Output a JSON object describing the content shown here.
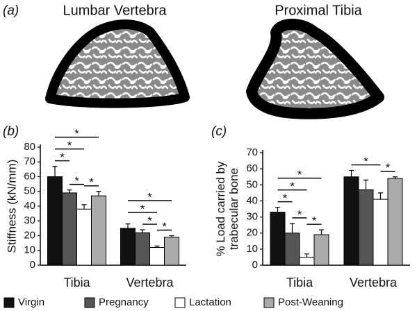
{
  "figure_label": "(a)",
  "images": [
    {
      "title": "Lumbar Vertebra"
    },
    {
      "title": "Proximal Tibia"
    }
  ],
  "legend": {
    "position": "bottom",
    "items": [
      {
        "name": "Virgin",
        "color": "#111111"
      },
      {
        "name": "Pregnancy",
        "color": "#555555"
      },
      {
        "name": "Lactation",
        "color": "#ffffff"
      },
      {
        "name": "Post-Weaning",
        "color": "#aaaaaa"
      }
    ]
  },
  "chart_data": [
    {
      "type": "bar",
      "panel": "(b)",
      "ylabel": [
        "Stiffness (kN/mm)"
      ],
      "categories": [
        "Tibia",
        "Vertebra"
      ],
      "series": [
        {
          "values": [
            60,
            25
          ],
          "errors": [
            7,
            3
          ]
        },
        {
          "values": [
            49,
            22
          ],
          "errors": [
            2,
            2
          ]
        },
        {
          "values": [
            38,
            12
          ],
          "errors": [
            3,
            1
          ]
        },
        {
          "values": [
            47,
            19
          ],
          "errors": [
            3,
            1
          ]
        }
      ],
      "ylim": [
        0,
        80
      ],
      "yticks": [
        0,
        10,
        20,
        30,
        40,
        50,
        60,
        70,
        80
      ],
      "significance": [
        {
          "in": "Tibia",
          "between": [
            "Virgin",
            "Pregnancy"
          ],
          "label": "*"
        },
        {
          "in": "Tibia",
          "between": [
            "Virgin",
            "Lactation"
          ],
          "label": "*"
        },
        {
          "in": "Tibia",
          "between": [
            "Virgin",
            "Post-Weaning"
          ],
          "label": "*"
        },
        {
          "in": "Tibia",
          "between": [
            "Pregnancy",
            "Lactation"
          ],
          "label": "*"
        },
        {
          "in": "Tibia",
          "between": [
            "Lactation",
            "Post-Weaning"
          ],
          "label": "*"
        },
        {
          "in": "Vertebra",
          "between": [
            "Virgin",
            "Lactation"
          ],
          "label": "*"
        },
        {
          "in": "Vertebra",
          "between": [
            "Virgin",
            "Post-Weaning"
          ],
          "label": "*"
        },
        {
          "in": "Vertebra",
          "between": [
            "Pregnancy",
            "Lactation"
          ],
          "label": "*"
        },
        {
          "in": "Vertebra",
          "between": [
            "Lactation",
            "Post-Weaning"
          ],
          "label": "*"
        }
      ]
    },
    {
      "type": "bar",
      "panel": "(c)",
      "ylabel": [
        "% Load carried by",
        "trabecular bone"
      ],
      "categories": [
        "Tibia",
        "Vertebra"
      ],
      "series": [
        {
          "values": [
            33,
            55
          ],
          "errors": [
            3,
            4
          ]
        },
        {
          "values": [
            20,
            47
          ],
          "errors": [
            6,
            6
          ]
        },
        {
          "values": [
            5,
            41
          ],
          "errors": [
            2,
            4
          ]
        },
        {
          "values": [
            19,
            54
          ],
          "errors": [
            3,
            1
          ]
        }
      ],
      "ylim": [
        0,
        70
      ],
      "yticks": [
        0,
        10,
        20,
        30,
        40,
        50,
        60,
        70
      ],
      "significance": [
        {
          "in": "Tibia",
          "between": [
            "Virgin",
            "Pregnancy"
          ],
          "label": "*"
        },
        {
          "in": "Tibia",
          "between": [
            "Virgin",
            "Lactation"
          ],
          "label": "*"
        },
        {
          "in": "Tibia",
          "between": [
            "Virgin",
            "Post-Weaning"
          ],
          "label": "*"
        },
        {
          "in": "Tibia",
          "between": [
            "Pregnancy",
            "Lactation"
          ],
          "label": "*"
        },
        {
          "in": "Tibia",
          "between": [
            "Lactation",
            "Post-Weaning"
          ],
          "label": "*"
        },
        {
          "in": "Vertebra",
          "between": [
            "Virgin",
            "Lactation"
          ],
          "label": "*"
        },
        {
          "in": "Vertebra",
          "between": [
            "Lactation",
            "Post-Weaning"
          ],
          "label": "*"
        }
      ]
    }
  ]
}
